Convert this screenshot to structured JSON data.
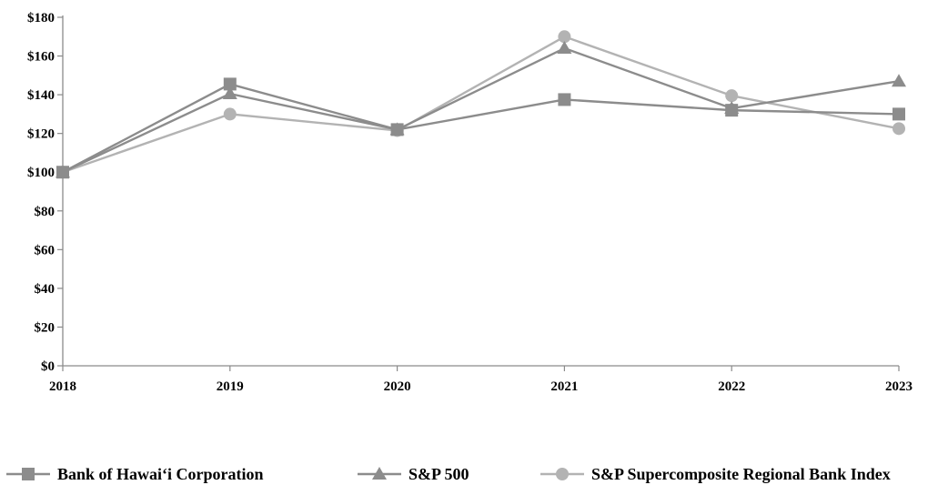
{
  "chart_data": {
    "type": "line",
    "categories": [
      "2018",
      "2019",
      "2020",
      "2021",
      "2022",
      "2023"
    ],
    "series": [
      {
        "name": "Bank of Hawai‘i Corporation",
        "marker": "square",
        "color": "#8c8c8c",
        "values": [
          100,
          145.5,
          122,
          137.5,
          132,
          130
        ]
      },
      {
        "name": "S&P 500",
        "marker": "triangle",
        "color": "#8c8c8c",
        "values": [
          100,
          140.5,
          122,
          164,
          133,
          147
        ]
      },
      {
        "name": "S&P Supercomposite Regional Bank Index",
        "marker": "circle",
        "color": "#b3b3b3",
        "values": [
          100,
          130,
          121.5,
          170,
          139.5,
          122.5
        ]
      }
    ],
    "yticks": [
      "$0",
      "$20",
      "$40",
      "$60",
      "$80",
      "$100",
      "$120",
      "$140",
      "$160",
      "$180"
    ],
    "ylim": [
      0,
      180
    ],
    "grid": false,
    "legend": "bottom"
  }
}
